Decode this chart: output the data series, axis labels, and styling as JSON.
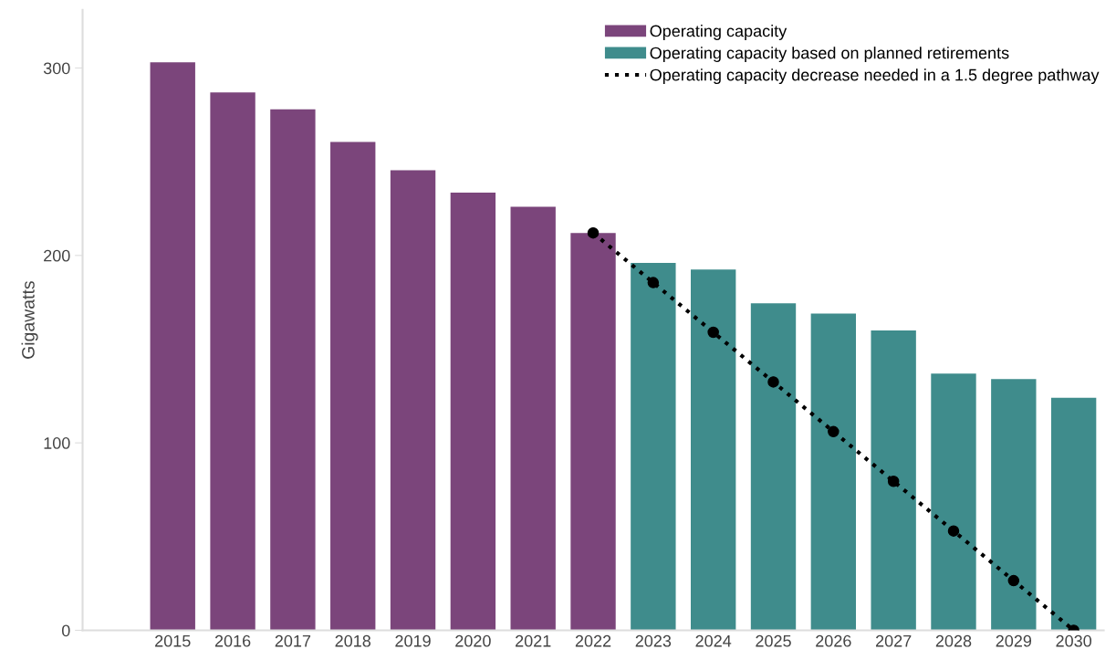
{
  "chart_data": {
    "type": "bar",
    "ylabel": "Gigawatts",
    "categories": [
      "2015",
      "2016",
      "2017",
      "2018",
      "2019",
      "2020",
      "2021",
      "2022",
      "2023",
      "2024",
      "2025",
      "2026",
      "2027",
      "2028",
      "2029",
      "2030"
    ],
    "series": [
      {
        "name": "Operating capacity",
        "color": "#7b457b",
        "values": [
          303,
          287,
          278,
          260.5,
          245.5,
          233.5,
          226,
          212,
          null,
          null,
          null,
          null,
          null,
          null,
          null,
          null
        ]
      },
      {
        "name": "Operating capacity based on planned retirements",
        "color": "#3f8c8c",
        "values": [
          null,
          null,
          null,
          null,
          null,
          null,
          null,
          null,
          196,
          192.5,
          174.5,
          169,
          160,
          137,
          134,
          124
        ]
      },
      {
        "name": "Operating capacity decrease needed in a 1.5 degree pathway",
        "type": "line",
        "color": "#000000",
        "marker": "circle",
        "line_style": "dotted",
        "values": [
          null,
          null,
          null,
          null,
          null,
          null,
          null,
          212,
          185.5,
          159,
          132.5,
          106,
          79.5,
          53,
          26.5,
          0
        ]
      }
    ],
    "ylim": [
      0,
      331
    ],
    "yticks": [
      0,
      100,
      200,
      300
    ],
    "grid": false,
    "legend": "top right"
  }
}
